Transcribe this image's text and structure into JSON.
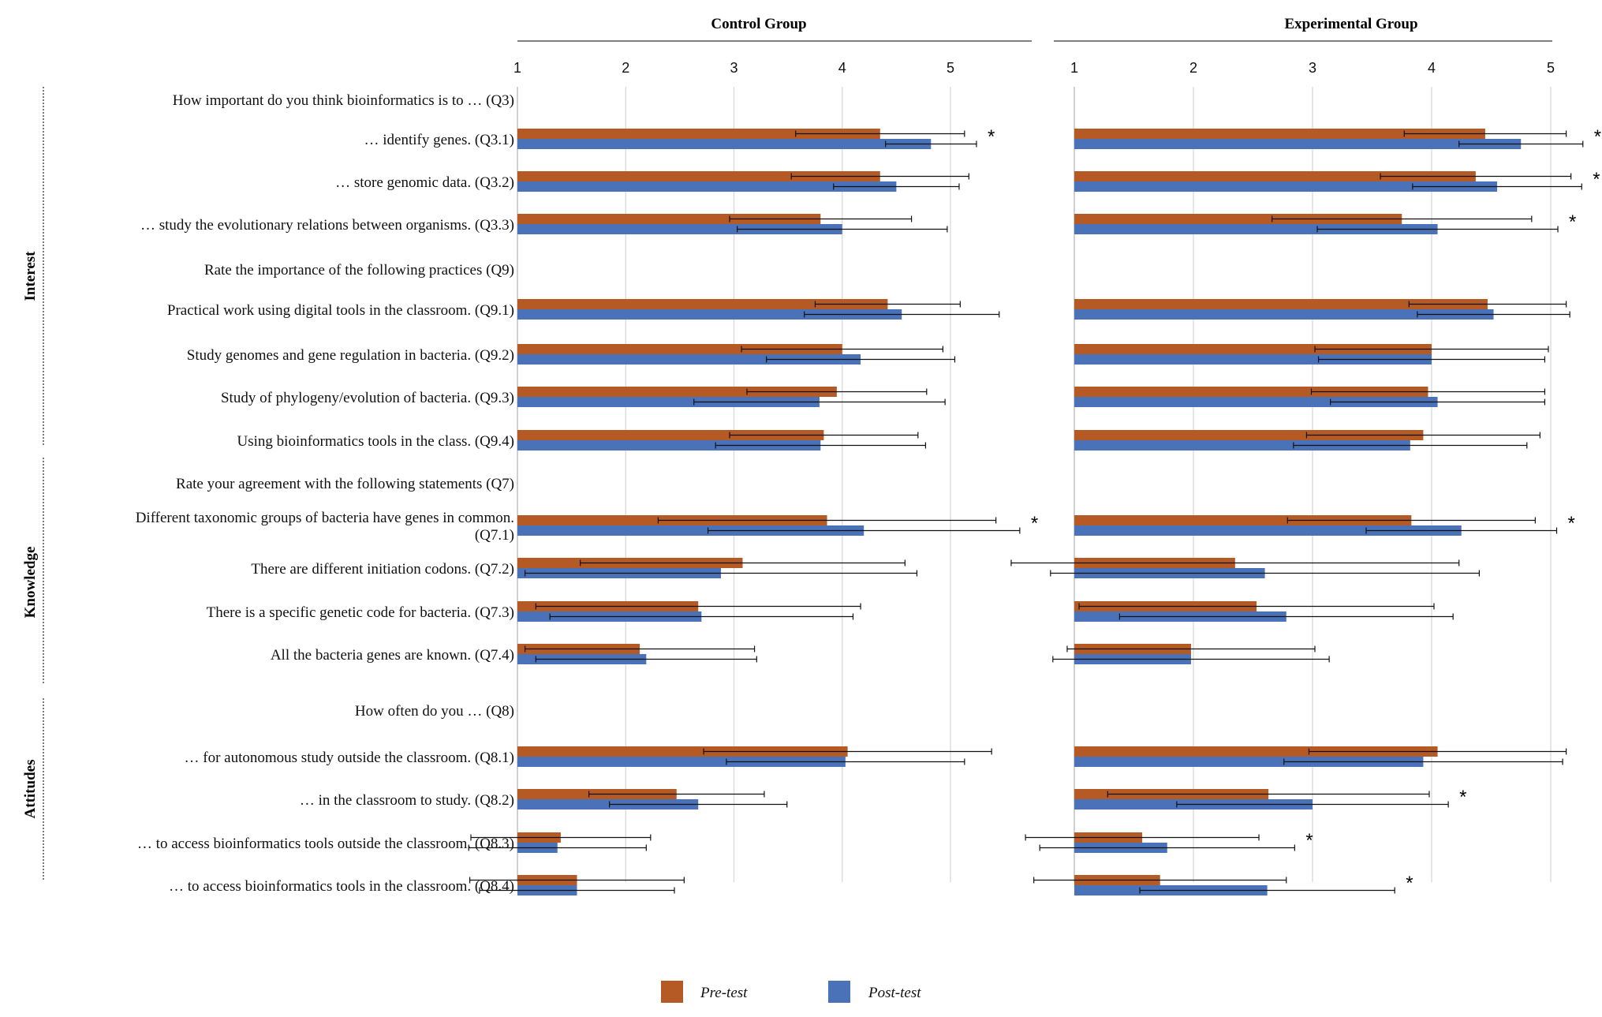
{
  "chart_data": {
    "type": "bar",
    "orientation": "horizontal",
    "xlim": [
      1,
      5
    ],
    "ticks": [
      "1",
      "2",
      "3",
      "4",
      "5"
    ],
    "grid": true,
    "panels": [
      {
        "id": "control",
        "title": "Control Group"
      },
      {
        "id": "experimental",
        "title": "Experimental Group"
      }
    ],
    "legend": [
      {
        "key": "pre",
        "label": "Pre-test",
        "color": "#B65A25"
      },
      {
        "key": "post",
        "label": "Post-test",
        "color": "#4A72B8"
      }
    ],
    "categories": [
      {
        "name": "Interest",
        "from": 0,
        "to": 8
      },
      {
        "name": "Knowledge",
        "from": 9,
        "to": 13
      },
      {
        "name": "Attitudes",
        "from": 14,
        "to": 18
      }
    ],
    "rows": [
      {
        "label": "How important do you think bioinformatics is to … (Q3)",
        "header": true
      },
      {
        "label": "… identify genes. (Q3.1)",
        "control": {
          "pre": 4.35,
          "pre_sd": 0.78,
          "post": 4.82,
          "post_sd": 0.42,
          "sig": "*"
        },
        "experimental": {
          "pre": 4.45,
          "pre_sd": 0.68,
          "post": 4.75,
          "post_sd": 0.52,
          "sig": "*"
        }
      },
      {
        "label": "… store genomic data. (Q3.2)",
        "control": {
          "pre": 4.35,
          "pre_sd": 0.82,
          "post": 4.5,
          "post_sd": 0.58
        },
        "experimental": {
          "pre": 4.37,
          "pre_sd": 0.8,
          "post": 4.55,
          "post_sd": 0.71,
          "sig": "*"
        }
      },
      {
        "label": "… study the evolutionary relations between organisms. (Q3.3)",
        "control": {
          "pre": 3.8,
          "pre_sd": 0.84,
          "post": 4.0,
          "post_sd": 0.97
        },
        "experimental": {
          "pre": 3.75,
          "pre_sd": 1.09,
          "post": 4.05,
          "post_sd": 1.01,
          "sig": "*"
        }
      },
      {
        "label": "Rate the importance of the following practices (Q9)",
        "header": true
      },
      {
        "label": "Practical work using digital tools in the classroom. (Q9.1)",
        "control": {
          "pre": 4.42,
          "pre_sd": 0.67,
          "post": 4.55,
          "post_sd": 0.9
        },
        "experimental": {
          "pre": 4.47,
          "pre_sd": 0.66,
          "post": 4.52,
          "post_sd": 0.64
        }
      },
      {
        "label": "Study genomes and gene regulation in bacteria. (Q9.2)",
        "control": {
          "pre": 4.0,
          "pre_sd": 0.93,
          "post": 4.17,
          "post_sd": 0.87
        },
        "experimental": {
          "pre": 4.0,
          "pre_sd": 0.98,
          "post": 4.0,
          "post_sd": 0.95
        }
      },
      {
        "label": "Study of phylogeny/evolution of bacteria. (Q9.3)",
        "control": {
          "pre": 3.95,
          "pre_sd": 0.83,
          "post": 3.79,
          "post_sd": 1.16
        },
        "experimental": {
          "pre": 3.97,
          "pre_sd": 0.98,
          "post": 4.05,
          "post_sd": 0.9
        }
      },
      {
        "label": "Using bioinformatics tools in the class. (Q9.4)",
        "control": {
          "pre": 3.83,
          "pre_sd": 0.87,
          "post": 3.8,
          "post_sd": 0.97
        },
        "experimental": {
          "pre": 3.93,
          "pre_sd": 0.98,
          "post": 3.82,
          "post_sd": 0.98
        }
      },
      {
        "label": "Rate your agreement with the following statements (Q7)",
        "header": true
      },
      {
        "label": "Different taxonomic groups of bacteria have genes in common. (Q7.1)",
        "control": {
          "pre": 3.86,
          "pre_sd": 1.56,
          "post": 4.2,
          "post_sd": 1.44,
          "sig": "*"
        },
        "experimental": {
          "pre": 3.83,
          "pre_sd": 1.04,
          "post": 4.25,
          "post_sd": 0.8,
          "sig": "*"
        }
      },
      {
        "label": "There are different initiation codons. (Q7.2)",
        "control": {
          "pre": 3.08,
          "pre_sd": 1.5,
          "post": 2.88,
          "post_sd": 1.81
        },
        "experimental": {
          "pre": 2.35,
          "pre_sd": 1.88,
          "post": 2.6,
          "post_sd": 1.8
        }
      },
      {
        "label": "There is a specific genetic code for bacteria. (Q7.3)",
        "control": {
          "pre": 2.67,
          "pre_sd": 1.5,
          "post": 2.7,
          "post_sd": 1.4
        },
        "experimental": {
          "pre": 2.53,
          "pre_sd": 1.49,
          "post": 2.78,
          "post_sd": 1.4
        }
      },
      {
        "label": "All the bacteria genes are known. (Q7.4)",
        "control": {
          "pre": 2.13,
          "pre_sd": 1.06,
          "post": 2.19,
          "post_sd": 1.02
        },
        "experimental": {
          "pre": 1.98,
          "pre_sd": 1.04,
          "post": 1.98,
          "post_sd": 1.16
        }
      },
      {
        "label": "How often do you … (Q8)",
        "header": true
      },
      {
        "label": "… for autonomous study outside the classroom. (Q8.1)",
        "control": {
          "pre": 4.05,
          "pre_sd": 1.33,
          "post": 4.03,
          "post_sd": 1.1
        },
        "experimental": {
          "pre": 4.05,
          "pre_sd": 1.08,
          "post": 3.93,
          "post_sd": 1.17
        }
      },
      {
        "label": "… in the classroom to study. (Q8.2)",
        "control": {
          "pre": 2.47,
          "pre_sd": 0.81,
          "post": 2.67,
          "post_sd": 0.82
        },
        "experimental": {
          "pre": 2.63,
          "pre_sd": 1.35,
          "post": 3.0,
          "post_sd": 1.14,
          "sig": "*"
        }
      },
      {
        "label": "… to access bioinformatics tools outside the classroom. (Q8.3)",
        "control": {
          "pre": 1.4,
          "pre_sd": 0.83,
          "post": 1.37,
          "post_sd": 0.82
        },
        "experimental": {
          "pre": 1.57,
          "pre_sd": 0.98,
          "post": 1.78,
          "post_sd": 1.07,
          "sig": "*"
        }
      },
      {
        "label": "… to access bioinformatics tools in the classroom. (Q8.4)",
        "control": {
          "pre": 1.55,
          "pre_sd": 0.99,
          "post": 1.55,
          "post_sd": 0.9
        },
        "experimental": {
          "pre": 1.72,
          "pre_sd": 1.06,
          "post": 2.62,
          "post_sd": 1.07,
          "sig": "*"
        }
      }
    ]
  }
}
